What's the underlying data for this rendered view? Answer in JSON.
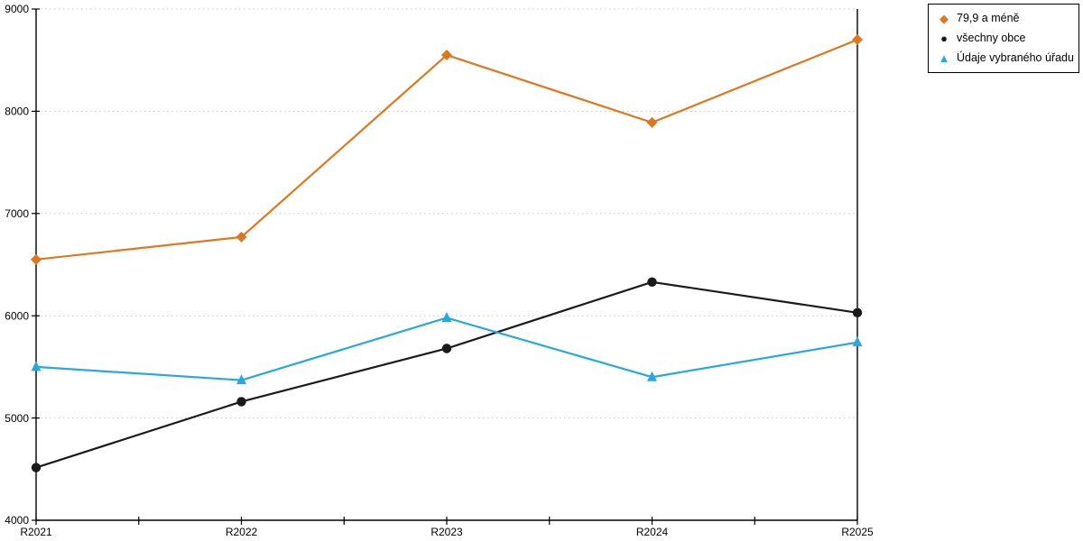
{
  "chart_data": {
    "type": "line",
    "title": "",
    "xlabel": "",
    "ylabel": "",
    "categories": [
      "R2021",
      "R2022",
      "R2023",
      "R2024",
      "R2025"
    ],
    "series": [
      {
        "name": "79,9 a méně",
        "color": "#e0761e",
        "marker": "diamond",
        "glyph": "◆",
        "values": [
          6550,
          6770,
          8550,
          7890,
          8700
        ]
      },
      {
        "name": "všechny obce",
        "color": "#1a1a1a",
        "marker": "circle",
        "glyph": "●",
        "values": [
          4515,
          5160,
          5680,
          6330,
          6030
        ]
      },
      {
        "name": "Údaje vybraného úřadu",
        "color": "#29a8e0",
        "marker": "triangle",
        "glyph": "▲",
        "values": [
          5500,
          5370,
          5980,
          5400,
          5740
        ]
      }
    ],
    "ylim": [
      4000,
      9000
    ],
    "yticks": [
      4000,
      5000,
      6000,
      7000,
      8000,
      9000
    ],
    "grid": "horizontal-dotted",
    "legend_position": "top-right",
    "colors": {
      "grid": "#c8c8c8",
      "axis": "#000000",
      "background": "#ffffff"
    }
  }
}
